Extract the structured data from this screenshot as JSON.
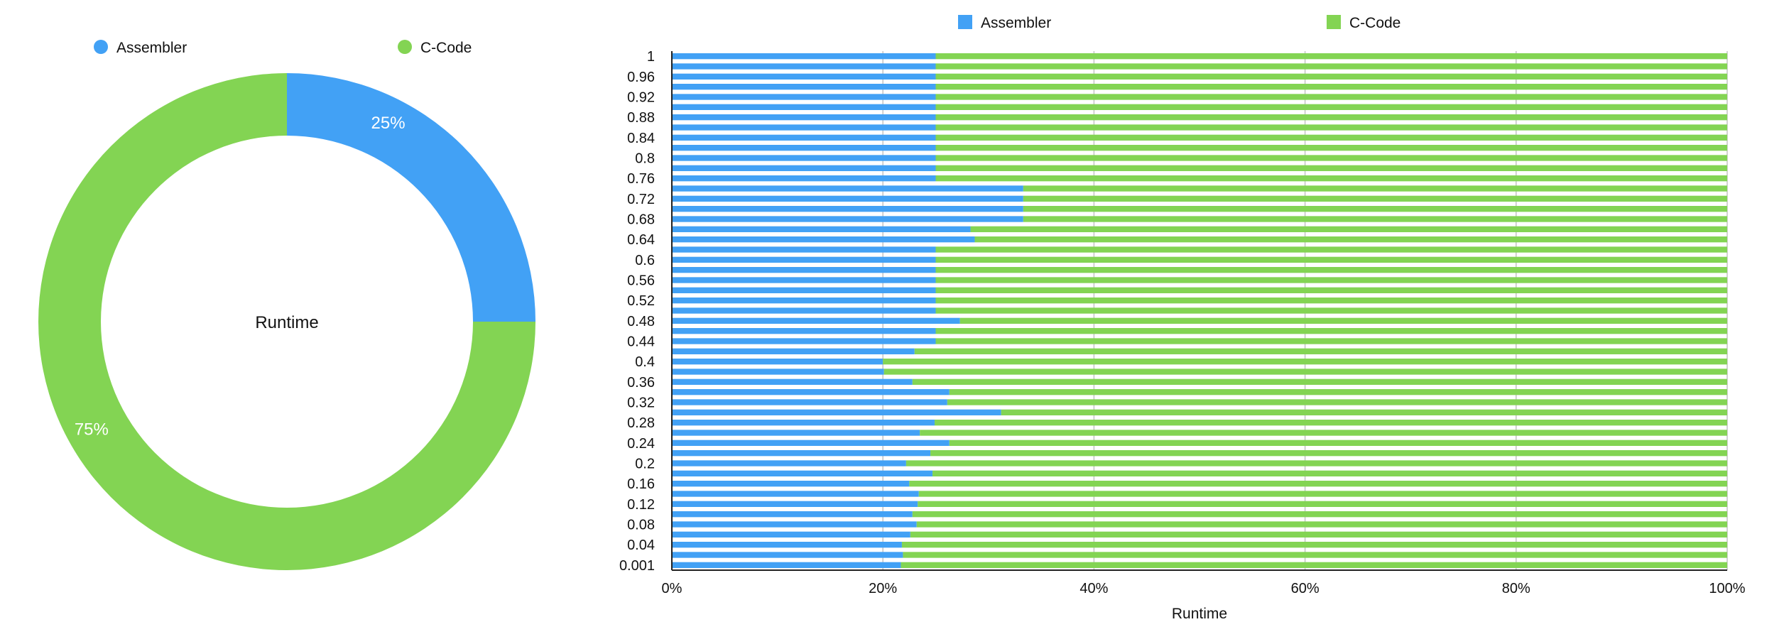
{
  "chart_data": [
    {
      "type": "pie",
      "variant": "donut",
      "center_label": "Runtime",
      "legend": [
        {
          "name": "Assembler",
          "color": "#42a1f5"
        },
        {
          "name": "C-Code",
          "color": "#83d453"
        }
      ],
      "slices": [
        {
          "name": "Assembler",
          "value": 25,
          "label": "25%",
          "color": "#42a1f5"
        },
        {
          "name": "C-Code",
          "value": 75,
          "label": "75%",
          "color": "#83d453"
        }
      ]
    },
    {
      "type": "bar",
      "orientation": "horizontal",
      "stacked": "percent",
      "xlabel": "Runtime",
      "xlim": [
        0,
        100
      ],
      "x_ticks": [
        "0%",
        "20%",
        "40%",
        "60%",
        "80%",
        "100%"
      ],
      "grid": true,
      "legend_position": "top",
      "categories": [
        "0.001",
        "",
        "0.04",
        "",
        "0.08",
        "",
        "0.12",
        "",
        "0.16",
        "",
        "0.2",
        "",
        "0.24",
        "",
        "0.28",
        "",
        "0.32",
        "",
        "0.36",
        "",
        "0.4",
        "",
        "0.44",
        "",
        "0.48",
        "",
        "0.52",
        "",
        "0.56",
        "",
        "0.6",
        "",
        "0.64",
        "",
        "0.68",
        "",
        "0.72",
        "",
        "0.76",
        "",
        "0.8",
        "",
        "0.84",
        "",
        "0.88",
        "",
        "0.92",
        "",
        "0.96",
        "",
        "1"
      ],
      "series": [
        {
          "name": "Assembler",
          "color": "#42a1f5",
          "values": [
            21.7,
            21.9,
            21.8,
            22.6,
            23.2,
            22.8,
            23.3,
            23.4,
            22.5,
            24.7,
            22.2,
            24.5,
            26.3,
            23.5,
            24.9,
            31.2,
            26.1,
            26.3,
            22.8,
            20.1,
            20.0,
            23.0,
            25.0,
            25.0,
            27.3,
            25.0,
            25.0,
            25.0,
            25.0,
            25.0,
            25.0,
            25.0,
            28.7,
            28.3,
            33.3,
            33.3,
            33.3,
            33.3,
            25.0,
            25.0,
            25.0,
            25.0,
            25.0,
            25.0,
            25.0,
            25.0,
            25.0,
            25.0,
            25.0,
            25.0,
            25.0
          ]
        },
        {
          "name": "C-Code",
          "color": "#83d453",
          "values": [
            78.3,
            78.1,
            78.2,
            77.4,
            76.8,
            77.2,
            76.7,
            76.6,
            77.5,
            75.3,
            77.8,
            75.5,
            73.7,
            76.5,
            75.1,
            68.8,
            73.9,
            73.7,
            77.2,
            79.9,
            80.0,
            77.0,
            75.0,
            75.0,
            72.7,
            75.0,
            75.0,
            75.0,
            75.0,
            75.0,
            75.0,
            75.0,
            71.3,
            71.7,
            66.7,
            66.7,
            66.7,
            66.7,
            75.0,
            75.0,
            75.0,
            75.0,
            75.0,
            75.0,
            75.0,
            75.0,
            75.0,
            75.0,
            75.0,
            75.0,
            75.0
          ]
        }
      ]
    }
  ]
}
